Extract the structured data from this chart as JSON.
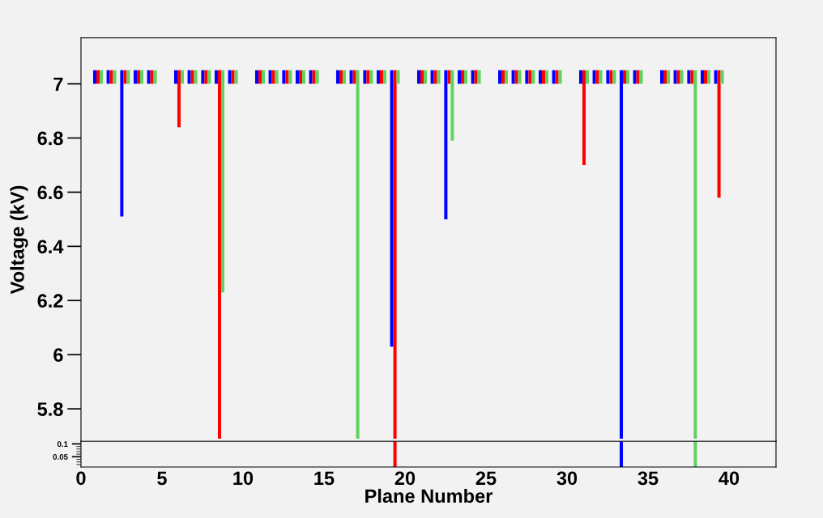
{
  "chart_data": [
    {
      "type": "bar",
      "ylabel": "Voltage (kV)",
      "tick_labels": "y",
      "xlim": [
        0,
        42.9
      ],
      "ylim": [
        5.68,
        7.17
      ],
      "yticks": [
        5.8,
        6,
        6.2,
        6.4,
        6.6,
        6.8,
        7
      ],
      "series": [
        {
          "color": "#0000ff",
          "x": [
            0.85,
            1.68,
            2.52,
            3.35,
            4.18,
            5.85,
            6.68,
            7.52,
            8.35,
            9.18,
            10.85,
            11.68,
            12.52,
            13.35,
            14.18,
            15.85,
            16.68,
            17.52,
            18.35,
            19.18,
            20.85,
            21.68,
            22.52,
            23.35,
            24.18,
            25.85,
            26.68,
            27.52,
            28.35,
            29.18,
            30.85,
            31.68,
            32.52,
            33.35,
            34.18,
            35.85,
            36.68,
            37.52,
            38.35,
            39.18
          ],
          "base": [
            7.05,
            7.05,
            7.05,
            7.05,
            7.05,
            7.05,
            7.05,
            7.05,
            7.05,
            7.05,
            7.05,
            7.05,
            7.05,
            7.05,
            7.05,
            7.05,
            7.05,
            7.05,
            7.05,
            7.05,
            7.05,
            7.05,
            7.05,
            7.05,
            7.05,
            7.05,
            7.05,
            7.05,
            7.05,
            7.05,
            7.05,
            7.05,
            7.05,
            7.05,
            7.05,
            7.05,
            7.05,
            7.05,
            7.05,
            7.05
          ],
          "values": [
            -0.05,
            -0.05,
            -0.54,
            -0.05,
            -0.05,
            -0.05,
            -0.05,
            -0.05,
            -0.05,
            -0.05,
            -0.05,
            -0.05,
            -0.05,
            -0.05,
            -0.05,
            -0.05,
            -0.05,
            -0.05,
            -0.05,
            -1.02,
            -0.05,
            -0.05,
            -0.55,
            -0.05,
            -0.05,
            -0.05,
            -0.05,
            -0.05,
            -0.05,
            -0.05,
            -0.05,
            -0.05,
            -0.05,
            -1.36,
            -0.05,
            -0.05,
            -0.05,
            -0.05,
            -0.05,
            -0.05
          ]
        },
        {
          "color": "#ff0000",
          "x": [
            1.05,
            1.88,
            2.72,
            3.55,
            4.38,
            6.05,
            6.88,
            7.72,
            8.55,
            9.38,
            11.05,
            11.88,
            12.72,
            13.55,
            14.38,
            16.05,
            16.88,
            17.72,
            18.55,
            19.38,
            21.05,
            21.88,
            22.72,
            23.55,
            24.38,
            26.05,
            26.88,
            27.72,
            28.55,
            29.38,
            31.05,
            31.88,
            32.72,
            33.55,
            34.38,
            36.05,
            36.88,
            37.72,
            38.55,
            39.38
          ],
          "base": [
            7.05,
            7.05,
            7.05,
            7.05,
            7.05,
            7.05,
            7.05,
            7.05,
            7.05,
            7.05,
            7.05,
            7.05,
            7.05,
            7.05,
            7.05,
            7.05,
            7.05,
            7.05,
            7.05,
            7.05,
            7.05,
            7.05,
            7.05,
            7.05,
            7.05,
            7.05,
            7.05,
            7.05,
            7.05,
            7.05,
            7.05,
            7.05,
            7.05,
            7.05,
            7.05,
            7.05,
            7.05,
            7.05,
            7.05,
            7.05
          ],
          "values": [
            -0.05,
            -0.05,
            -0.05,
            -0.05,
            -0.05,
            -0.21,
            -0.05,
            -0.05,
            -1.36,
            -0.05,
            -0.05,
            -0.05,
            -0.05,
            -0.05,
            -0.05,
            -0.05,
            -0.05,
            -0.05,
            -0.05,
            -1.36,
            -0.05,
            -0.05,
            -0.05,
            -0.05,
            -0.05,
            -0.05,
            -0.05,
            -0.05,
            -0.05,
            -0.05,
            -0.35,
            -0.05,
            -0.05,
            -0.05,
            -0.05,
            -0.05,
            -0.05,
            -0.05,
            -0.05,
            -0.47
          ]
        },
        {
          "color": "#5fd35f",
          "x": [
            1.25,
            2.08,
            2.92,
            3.75,
            4.58,
            6.25,
            7.08,
            7.92,
            8.75,
            9.58,
            11.25,
            12.08,
            12.92,
            13.75,
            14.58,
            16.25,
            17.08,
            17.92,
            18.75,
            19.58,
            21.25,
            22.08,
            22.92,
            23.75,
            24.58,
            26.25,
            27.08,
            27.92,
            28.75,
            29.58,
            31.25,
            32.08,
            32.92,
            33.75,
            34.58,
            36.25,
            37.08,
            37.92,
            38.75,
            39.58
          ],
          "base": [
            7.05,
            7.05,
            7.05,
            7.05,
            7.05,
            7.05,
            7.05,
            7.05,
            7.05,
            7.05,
            7.05,
            7.05,
            7.05,
            7.05,
            7.05,
            7.05,
            7.05,
            7.05,
            7.05,
            7.05,
            7.05,
            7.05,
            7.05,
            7.05,
            7.05,
            7.05,
            7.05,
            7.05,
            7.05,
            7.05,
            7.05,
            7.05,
            7.05,
            7.05,
            7.05,
            7.05,
            7.05,
            7.05,
            7.05,
            7.05
          ],
          "values": [
            -0.05,
            -0.05,
            -0.05,
            -0.05,
            -0.05,
            -0.05,
            -0.05,
            -0.05,
            -0.82,
            -0.05,
            -0.05,
            -0.05,
            -0.05,
            -0.05,
            -0.05,
            -0.05,
            -1.36,
            -0.05,
            -0.05,
            -0.05,
            -0.05,
            -0.05,
            -0.26,
            -0.05,
            -0.05,
            -0.05,
            -0.05,
            -0.05,
            -0.05,
            -0.05,
            -0.05,
            -0.05,
            -0.05,
            -0.05,
            -0.05,
            -0.05,
            -0.05,
            -1.36,
            -0.05,
            -0.05
          ]
        }
      ]
    },
    {
      "type": "bar",
      "xlabel": "Plane Number",
      "xlim": [
        0,
        42.9
      ],
      "ylim": [
        0.01,
        0.11
      ],
      "xticks": [
        0,
        5,
        10,
        15,
        20,
        25,
        30,
        35,
        40
      ],
      "yticks": [
        0.05,
        0.1,
        {
          "value": 0.02,
          "label": null
        },
        {
          "value": 0.03,
          "label": null
        },
        {
          "value": 0.04,
          "label": null
        },
        {
          "value": 0.06,
          "label": null
        },
        {
          "value": 0.07,
          "label": null
        },
        {
          "value": 0.08,
          "label": null
        },
        {
          "value": 0.09,
          "label": null
        }
      ],
      "series": [
        {
          "color": "#0000ff",
          "x": [
            33.35
          ],
          "base": [
            0.11
          ],
          "values": [
            -0.1
          ]
        },
        {
          "color": "#ff0000",
          "x": [
            19.38
          ],
          "base": [
            0.11
          ],
          "values": [
            -0.1
          ]
        },
        {
          "color": "#5fd35f",
          "x": [
            37.92
          ],
          "base": [
            0.11
          ],
          "values": [
            -0.1
          ]
        }
      ]
    }
  ]
}
